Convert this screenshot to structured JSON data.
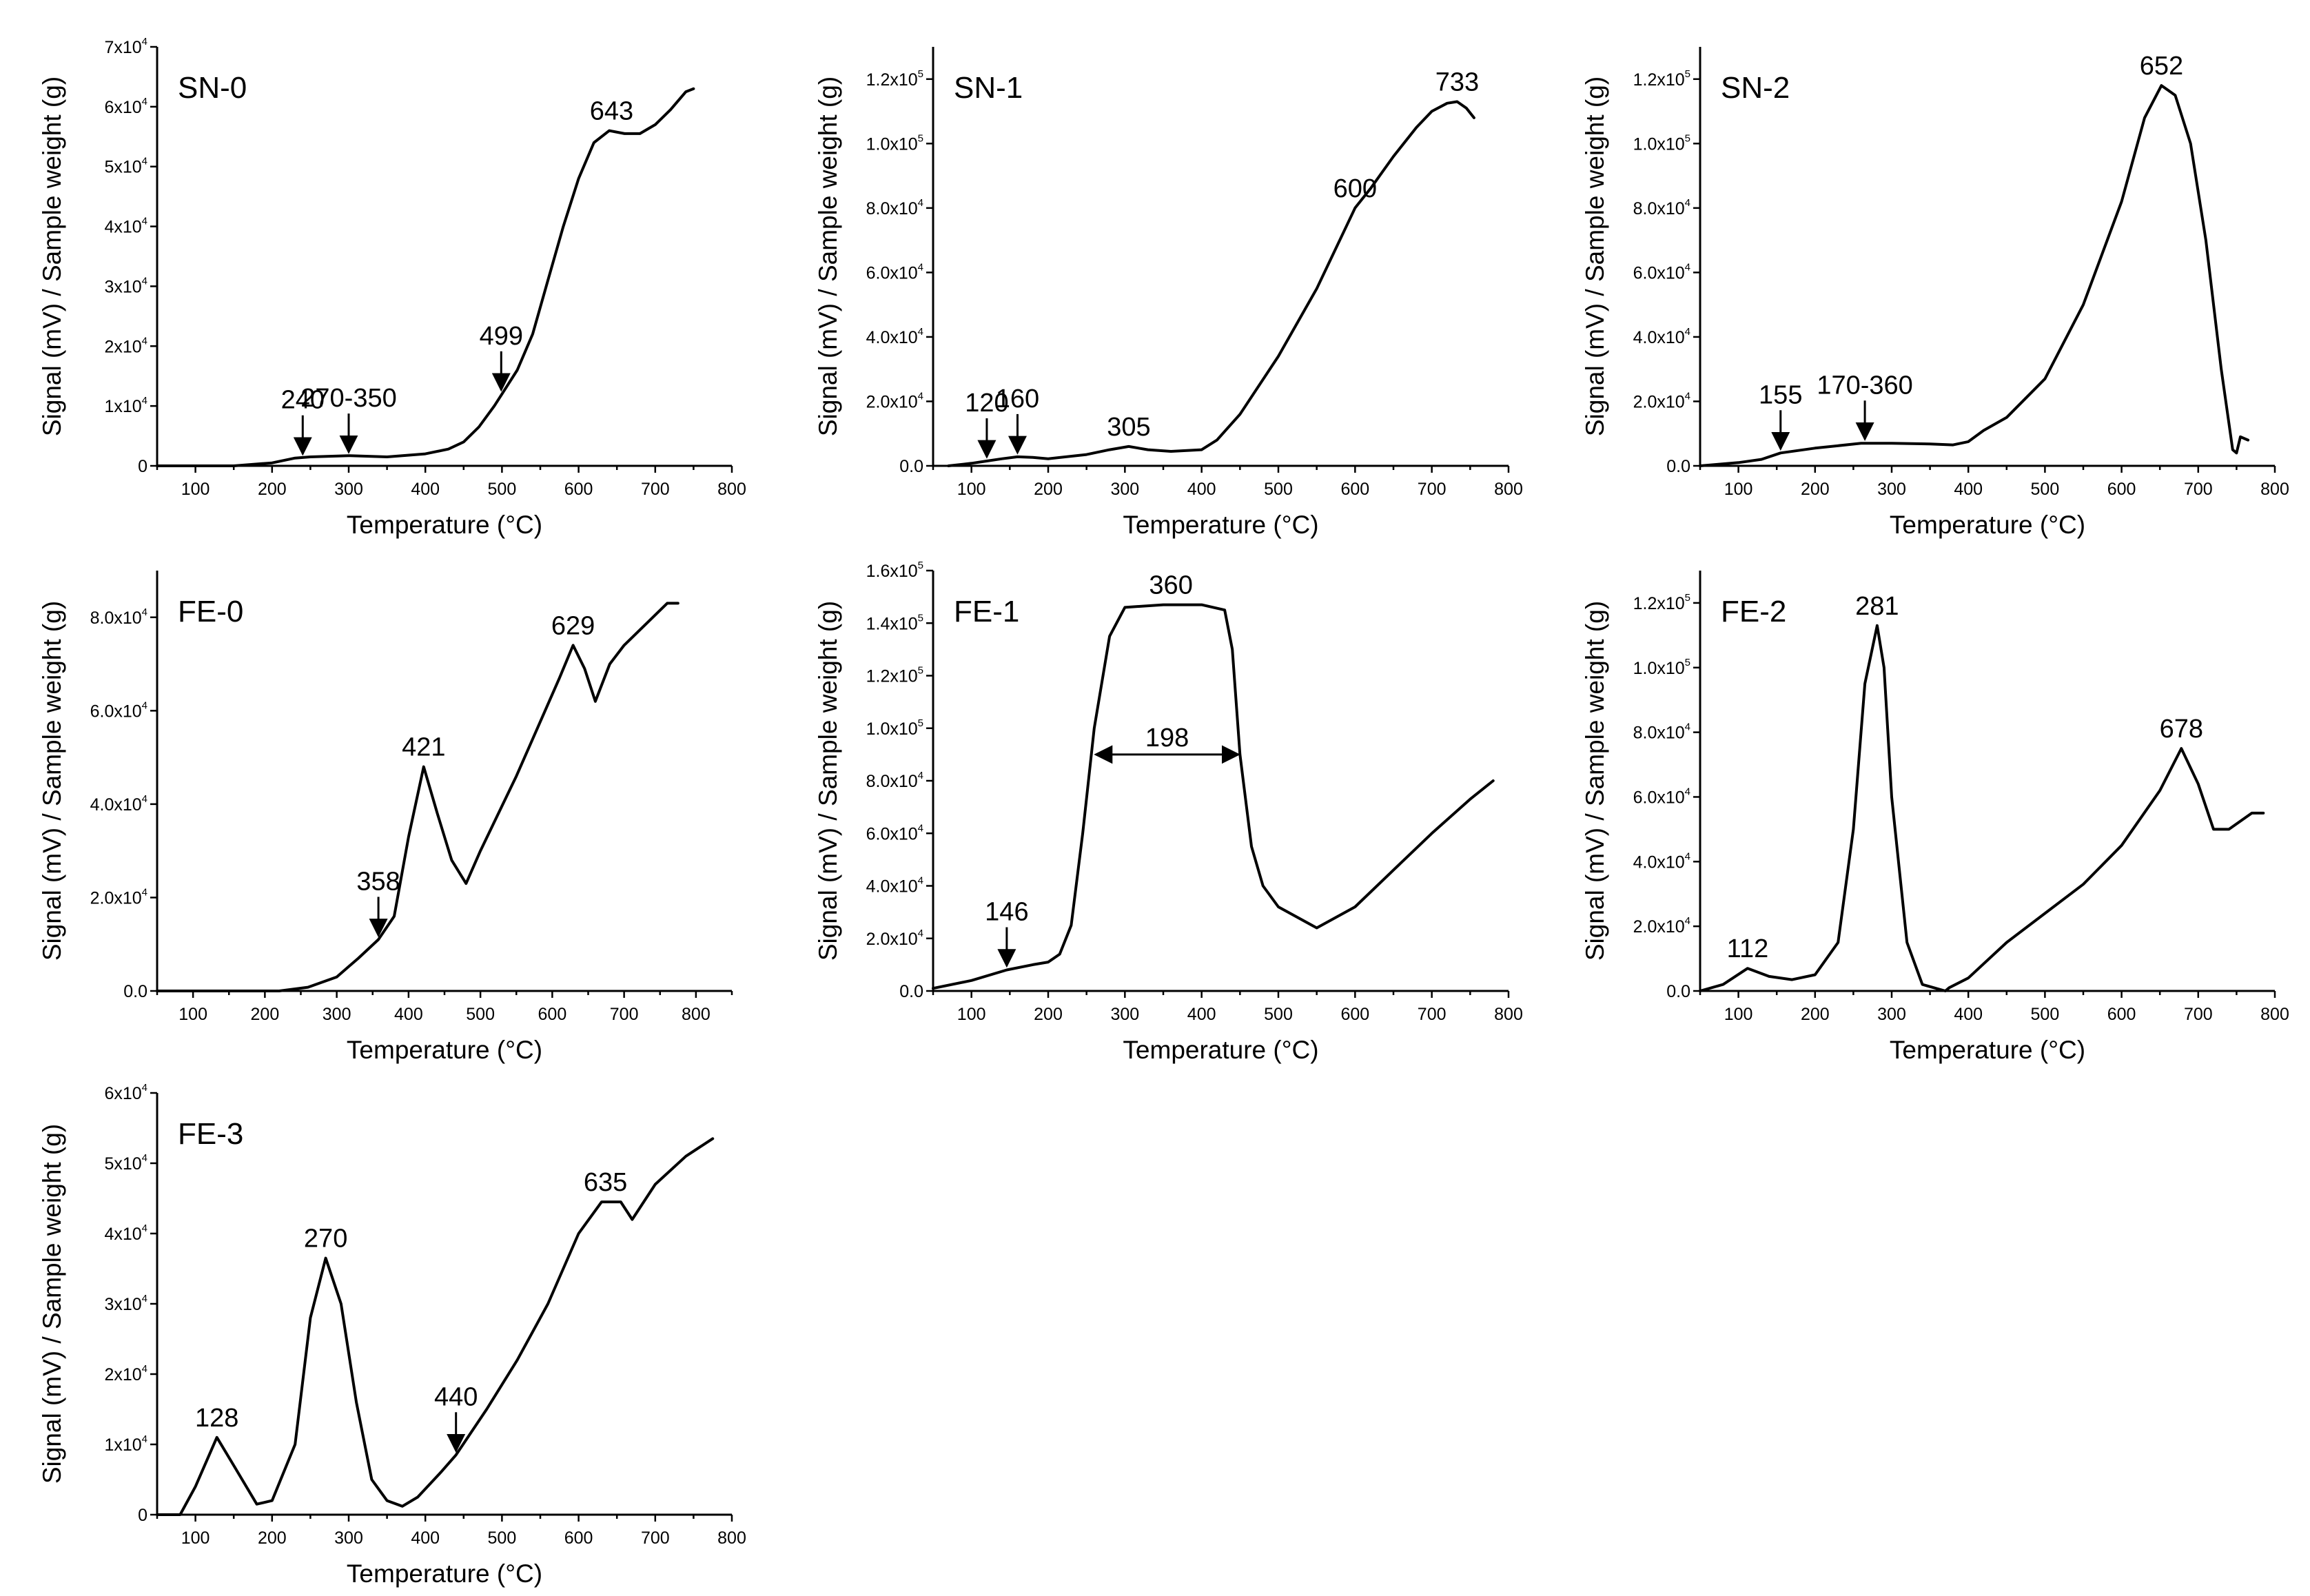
{
  "chart_data": [
    {
      "type": "line",
      "panel_label": "SN-0",
      "xlabel": "Temperature (°C)",
      "ylabel": "Signal (mV) / Sample weight (g)",
      "xlim": [
        50,
        800
      ],
      "ylim": [
        0,
        70000
      ],
      "x_ticks": [
        "100",
        "200",
        "300",
        "400",
        "500",
        "600",
        "700",
        "800"
      ],
      "y_ticks": [
        {
          "v": 0,
          "m": "0",
          "e": ""
        },
        {
          "v": 10000,
          "m": "1x10",
          "e": "4"
        },
        {
          "v": 20000,
          "m": "2x10",
          "e": "4"
        },
        {
          "v": 30000,
          "m": "3x10",
          "e": "4"
        },
        {
          "v": 40000,
          "m": "4x10",
          "e": "4"
        },
        {
          "v": 50000,
          "m": "5x10",
          "e": "4"
        },
        {
          "v": 60000,
          "m": "6x10",
          "e": "4"
        },
        {
          "v": 70000,
          "m": "7x10",
          "e": "4"
        }
      ],
      "series": [
        {
          "name": "SN-0",
          "x": [
            50,
            100,
            150,
            200,
            230,
            250,
            300,
            350,
            400,
            430,
            450,
            470,
            490,
            500,
            520,
            540,
            560,
            580,
            600,
            620,
            640,
            660,
            680,
            700,
            720,
            740,
            750
          ],
          "y": [
            0,
            0,
            0,
            500,
            1300,
            1500,
            1700,
            1500,
            2000,
            2800,
            4000,
            6500,
            10000,
            12000,
            16000,
            22000,
            31000,
            40000,
            48000,
            54000,
            56000,
            55500,
            55500,
            57000,
            59500,
            62500,
            63000
          ]
        }
      ],
      "annotations": [
        {
          "text": "240",
          "x": 240,
          "y": 1300,
          "arrow": true
        },
        {
          "text": "270-350",
          "x": 300,
          "y": 1600,
          "arrow": true
        },
        {
          "text": "499",
          "x": 499,
          "y": 12000,
          "arrow": true
        },
        {
          "text": "643",
          "x": 643,
          "y": 56000,
          "arrow": false
        }
      ]
    },
    {
      "type": "line",
      "panel_label": "SN-1",
      "xlabel": "Temperature (°C)",
      "ylabel": "Signal (mV) / Sample weight (g)",
      "xlim": [
        50,
        800
      ],
      "ylim": [
        0,
        130000
      ],
      "x_ticks": [
        "100",
        "200",
        "300",
        "400",
        "500",
        "600",
        "700",
        "800"
      ],
      "y_ticks": [
        {
          "v": 0,
          "m": "0.0",
          "e": ""
        },
        {
          "v": 20000,
          "m": "2.0x10",
          "e": "4"
        },
        {
          "v": 40000,
          "m": "4.0x10",
          "e": "4"
        },
        {
          "v": 60000,
          "m": "6.0x10",
          "e": "4"
        },
        {
          "v": 80000,
          "m": "8.0x10",
          "e": "4"
        },
        {
          "v": 100000,
          "m": "1.0x10",
          "e": "5"
        },
        {
          "v": 120000,
          "m": "1.2x10",
          "e": "5"
        }
      ],
      "series": [
        {
          "name": "SN-1",
          "x": [
            70,
            100,
            120,
            140,
            160,
            180,
            200,
            250,
            280,
            305,
            330,
            360,
            400,
            420,
            450,
            500,
            550,
            590,
            600,
            620,
            650,
            680,
            700,
            720,
            733,
            745,
            755
          ],
          "y": [
            0,
            800,
            1500,
            2200,
            2800,
            2600,
            2200,
            3500,
            5000,
            6000,
            5000,
            4500,
            5000,
            8000,
            16000,
            34000,
            55000,
            75000,
            80000,
            86000,
            96000,
            105000,
            110000,
            112500,
            113000,
            111000,
            108000
          ]
        }
      ],
      "annotations": [
        {
          "text": "120",
          "x": 120,
          "y": 1500,
          "arrow": true
        },
        {
          "text": "160",
          "x": 160,
          "y": 2800,
          "arrow": true
        },
        {
          "text": "305",
          "x": 305,
          "y": 6000,
          "arrow": false
        },
        {
          "text": "600",
          "x": 600,
          "y": 80000,
          "arrow": false
        },
        {
          "text": "733",
          "x": 733,
          "y": 113000,
          "arrow": false
        }
      ]
    },
    {
      "type": "line",
      "panel_label": "SN-2",
      "xlabel": "Temperature (°C)",
      "ylabel": "Signal (mV) / Sample weight (g)",
      "xlim": [
        50,
        800
      ],
      "ylim": [
        0,
        130000
      ],
      "x_ticks": [
        "100",
        "200",
        "300",
        "400",
        "500",
        "600",
        "700",
        "800"
      ],
      "y_ticks": [
        {
          "v": 0,
          "m": "0.0",
          "e": ""
        },
        {
          "v": 20000,
          "m": "2.0x10",
          "e": "4"
        },
        {
          "v": 40000,
          "m": "4.0x10",
          "e": "4"
        },
        {
          "v": 60000,
          "m": "6.0x10",
          "e": "4"
        },
        {
          "v": 80000,
          "m": "8.0x10",
          "e": "4"
        },
        {
          "v": 100000,
          "m": "1.0x10",
          "e": "5"
        },
        {
          "v": 120000,
          "m": "1.2x10",
          "e": "5"
        }
      ],
      "series": [
        {
          "name": "SN-2",
          "x": [
            50,
            100,
            130,
            155,
            200,
            260,
            300,
            350,
            380,
            400,
            420,
            450,
            500,
            550,
            600,
            630,
            652,
            670,
            690,
            710,
            730,
            745,
            750,
            755,
            765
          ],
          "y": [
            0,
            1000,
            2000,
            4000,
            5500,
            7000,
            7000,
            6800,
            6500,
            7500,
            11000,
            15000,
            27000,
            50000,
            82000,
            108000,
            118000,
            115000,
            100000,
            70000,
            30000,
            5000,
            4000,
            9000,
            8000
          ]
        }
      ],
      "annotations": [
        {
          "text": "155",
          "x": 155,
          "y": 4000,
          "arrow": true
        },
        {
          "text": "170-360",
          "x": 265,
          "y": 7000,
          "arrow": true
        },
        {
          "text": "652",
          "x": 652,
          "y": 118000,
          "arrow": false
        }
      ]
    },
    {
      "type": "line",
      "panel_label": "FE-0",
      "xlabel": "Temperature (°C)",
      "ylabel": "Signal (mV) / Sample weight (g)",
      "xlim": [
        50,
        850
      ],
      "ylim": [
        0,
        90000
      ],
      "x_ticks": [
        "100",
        "200",
        "300",
        "400",
        "500",
        "600",
        "700",
        "800"
      ],
      "y_ticks": [
        {
          "v": 0,
          "m": "0.0",
          "e": ""
        },
        {
          "v": 20000,
          "m": "2.0x10",
          "e": "4"
        },
        {
          "v": 40000,
          "m": "4.0x10",
          "e": "4"
        },
        {
          "v": 60000,
          "m": "6.0x10",
          "e": "4"
        },
        {
          "v": 80000,
          "m": "8.0x10",
          "e": "4"
        }
      ],
      "series": [
        {
          "name": "FE-0",
          "x": [
            50,
            150,
            220,
            260,
            300,
            330,
            358,
            380,
            400,
            421,
            440,
            460,
            480,
            500,
            550,
            590,
            610,
            629,
            645,
            660,
            680,
            700,
            740,
            760,
            775
          ],
          "y": [
            0,
            0,
            0,
            800,
            3000,
            7000,
            11000,
            16000,
            33000,
            48000,
            38000,
            28000,
            23000,
            30000,
            46000,
            60000,
            67000,
            74000,
            69000,
            62000,
            70000,
            74000,
            80000,
            83000,
            83000
          ]
        }
      ],
      "annotations": [
        {
          "text": "358",
          "x": 358,
          "y": 11000,
          "arrow": true
        },
        {
          "text": "421",
          "x": 421,
          "y": 48000,
          "arrow": false
        },
        {
          "text": "629",
          "x": 629,
          "y": 74000,
          "arrow": false
        }
      ]
    },
    {
      "type": "line",
      "panel_label": "FE-1",
      "xlabel": "Temperature (°C)",
      "ylabel": "Signal (mV) / Sample weight (g)",
      "xlim": [
        50,
        800
      ],
      "ylim": [
        0,
        160000
      ],
      "x_ticks": [
        "100",
        "200",
        "300",
        "400",
        "500",
        "600",
        "700",
        "800"
      ],
      "y_ticks": [
        {
          "v": 0,
          "m": "0.0",
          "e": ""
        },
        {
          "v": 20000,
          "m": "2.0x10",
          "e": "4"
        },
        {
          "v": 40000,
          "m": "4.0x10",
          "e": "4"
        },
        {
          "v": 60000,
          "m": "6.0x10",
          "e": "4"
        },
        {
          "v": 80000,
          "m": "8.0x10",
          "e": "4"
        },
        {
          "v": 100000,
          "m": "1.0x10",
          "e": "5"
        },
        {
          "v": 120000,
          "m": "1.2x10",
          "e": "5"
        },
        {
          "v": 140000,
          "m": "1.4x10",
          "e": "5"
        },
        {
          "v": 160000,
          "m": "1.6x10",
          "e": "5"
        }
      ],
      "series": [
        {
          "name": "FE-1",
          "x": [
            50,
            100,
            146,
            180,
            200,
            215,
            230,
            245,
            260,
            280,
            300,
            350,
            400,
            430,
            440,
            450,
            465,
            480,
            500,
            550,
            600,
            650,
            700,
            750,
            780
          ],
          "y": [
            1000,
            4000,
            8000,
            10000,
            11000,
            14000,
            25000,
            60000,
            100000,
            135000,
            146000,
            147000,
            147000,
            145000,
            130000,
            90000,
            55000,
            40000,
            32000,
            24000,
            32000,
            46000,
            60000,
            73000,
            80000
          ]
        }
      ],
      "annotations": [
        {
          "text": "146",
          "x": 146,
          "y": 8000,
          "arrow": true
        },
        {
          "text": "360",
          "x": 360,
          "y": 147000,
          "arrow": false
        },
        {
          "text": "198",
          "x": 355,
          "y": 90000,
          "arrow": false,
          "range": [
            262,
            448
          ]
        }
      ]
    },
    {
      "type": "line",
      "panel_label": "FE-2",
      "xlabel": "Temperature (°C)",
      "ylabel": "Signal (mV) / Sample weight (g)",
      "xlim": [
        50,
        800
      ],
      "ylim": [
        0,
        130000
      ],
      "x_ticks": [
        "100",
        "200",
        "300",
        "400",
        "500",
        "600",
        "700",
        "800"
      ],
      "y_ticks": [
        {
          "v": 0,
          "m": "0.0",
          "e": ""
        },
        {
          "v": 20000,
          "m": "2.0x10",
          "e": "4"
        },
        {
          "v": 40000,
          "m": "4.0x10",
          "e": "4"
        },
        {
          "v": 60000,
          "m": "6.0x10",
          "e": "4"
        },
        {
          "v": 80000,
          "m": "8.0x10",
          "e": "4"
        },
        {
          "v": 100000,
          "m": "1.0x10",
          "e": "5"
        },
        {
          "v": 120000,
          "m": "1.2x10",
          "e": "5"
        }
      ],
      "series": [
        {
          "name": "FE-2",
          "x": [
            50,
            80,
            112,
            140,
            170,
            200,
            230,
            250,
            265,
            281,
            290,
            300,
            320,
            340,
            370,
            375,
            400,
            450,
            500,
            550,
            600,
            650,
            678,
            700,
            720,
            740,
            770,
            785
          ],
          "y": [
            0,
            2000,
            7000,
            4500,
            3500,
            5000,
            15000,
            50000,
            95000,
            113000,
            100000,
            60000,
            15000,
            2000,
            0,
            1000,
            4000,
            15000,
            24000,
            33000,
            45000,
            62000,
            75000,
            64000,
            50000,
            50000,
            55000,
            55000
          ]
        }
      ],
      "annotations": [
        {
          "text": "112",
          "x": 112,
          "y": 7000,
          "arrow": false
        },
        {
          "text": "281",
          "x": 281,
          "y": 113000,
          "arrow": false
        },
        {
          "text": "678",
          "x": 678,
          "y": 75000,
          "arrow": false
        }
      ]
    },
    {
      "type": "line",
      "panel_label": "FE-3",
      "xlabel": "Temperature (°C)",
      "ylabel": "Signal (mV) / Sample weight (g)",
      "xlim": [
        50,
        800
      ],
      "ylim": [
        0,
        60000
      ],
      "x_ticks": [
        "100",
        "200",
        "300",
        "400",
        "500",
        "600",
        "700",
        "800"
      ],
      "y_ticks": [
        {
          "v": 0,
          "m": "0",
          "e": ""
        },
        {
          "v": 10000,
          "m": "1x10",
          "e": "4"
        },
        {
          "v": 20000,
          "m": "2x10",
          "e": "4"
        },
        {
          "v": 30000,
          "m": "3x10",
          "e": "4"
        },
        {
          "v": 40000,
          "m": "4x10",
          "e": "4"
        },
        {
          "v": 50000,
          "m": "5x10",
          "e": "4"
        },
        {
          "v": 60000,
          "m": "6x10",
          "e": "4"
        }
      ],
      "series": [
        {
          "name": "FE-3",
          "x": [
            50,
            80,
            100,
            128,
            150,
            180,
            200,
            230,
            250,
            270,
            290,
            310,
            330,
            350,
            370,
            390,
            420,
            440,
            480,
            520,
            560,
            600,
            630,
            655,
            670,
            700,
            740,
            775
          ],
          "y": [
            0,
            0,
            4000,
            11000,
            7000,
            1500,
            2000,
            10000,
            28000,
            36500,
            30000,
            16000,
            5000,
            2000,
            1200,
            2500,
            6000,
            8500,
            15000,
            22000,
            30000,
            40000,
            44500,
            44500,
            42000,
            47000,
            51000,
            53500
          ]
        }
      ],
      "annotations": [
        {
          "text": "128",
          "x": 128,
          "y": 11000,
          "arrow": false
        },
        {
          "text": "270",
          "x": 270,
          "y": 36500,
          "arrow": false
        },
        {
          "text": "440",
          "x": 440,
          "y": 8500,
          "arrow": true
        },
        {
          "text": "635",
          "x": 635,
          "y": 44500,
          "arrow": false
        }
      ]
    }
  ]
}
